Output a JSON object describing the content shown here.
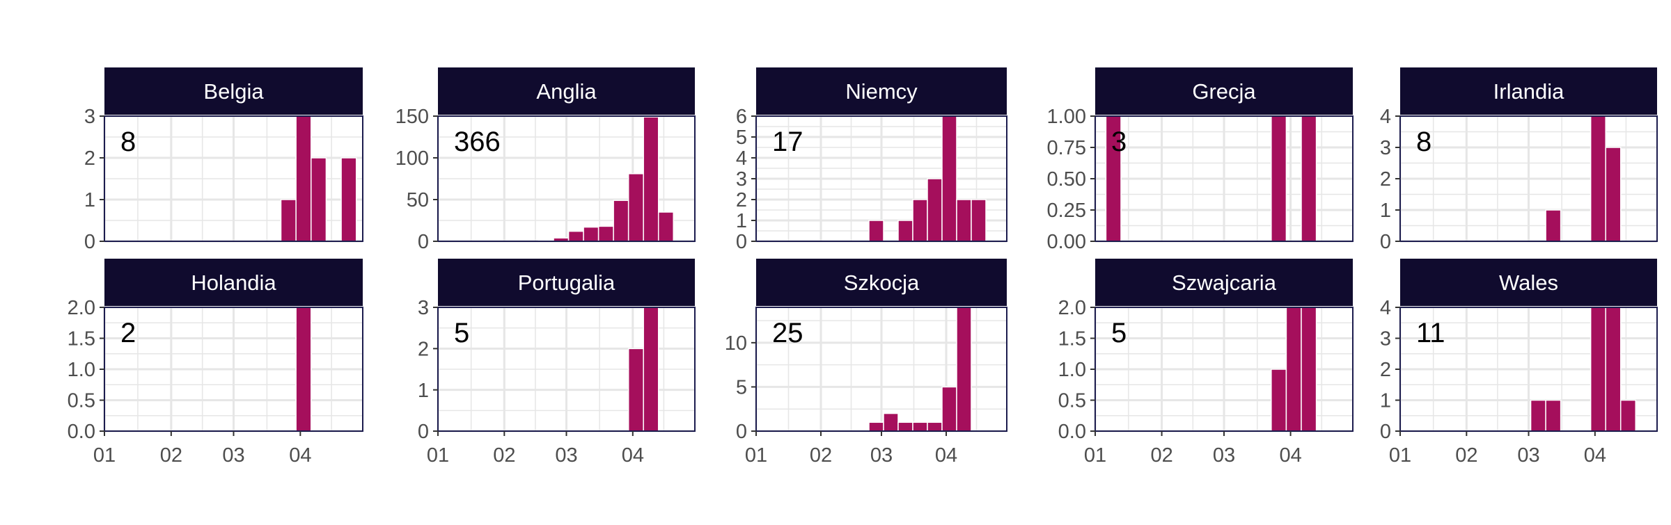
{
  "chart_data": {
    "type": "bar",
    "layout": "small-multiples 2x5, free y scales, shared x axis",
    "x_axis": {
      "type": "date-month",
      "range": [
        "2020-01-01",
        "2020-04-30"
      ],
      "ticks": [
        {
          "value": "2020-01-01",
          "label": "01"
        },
        {
          "value": "2020-02-01",
          "label": "02"
        },
        {
          "value": "2020-03-01",
          "label": "03"
        },
        {
          "value": "2020-04-01",
          "label": "04"
        }
      ]
    },
    "bar_color": "#a50f5c",
    "strip_color": "#100b2e",
    "strip_text_color": "#ffffff",
    "grid": true,
    "panels": [
      {
        "name": "Belgia",
        "total": "8",
        "ylim": [
          0,
          3
        ],
        "yticks": [
          {
            "v": 0,
            "label": "0"
          },
          {
            "v": 1,
            "label": "1"
          },
          {
            "v": 2,
            "label": "2"
          },
          {
            "v": 3,
            "label": "3"
          }
        ],
        "bars": [
          {
            "week_start": "2020-03-23",
            "value": 1
          },
          {
            "week_start": "2020-03-30",
            "value": 3
          },
          {
            "week_start": "2020-04-06",
            "value": 2
          },
          {
            "week_start": "2020-04-20",
            "value": 2
          }
        ]
      },
      {
        "name": "Anglia",
        "total": "366",
        "ylim": [
          0,
          150
        ],
        "yticks": [
          {
            "v": 0,
            "label": "0"
          },
          {
            "v": 50,
            "label": "50"
          },
          {
            "v": 100,
            "label": "100"
          },
          {
            "v": 150,
            "label": "150"
          }
        ],
        "bars": [
          {
            "week_start": "2020-02-17",
            "value": 1
          },
          {
            "week_start": "2020-02-24",
            "value": 4
          },
          {
            "week_start": "2020-03-02",
            "value": 12
          },
          {
            "week_start": "2020-03-09",
            "value": 17
          },
          {
            "week_start": "2020-03-16",
            "value": 18
          },
          {
            "week_start": "2020-03-23",
            "value": 49
          },
          {
            "week_start": "2020-03-30",
            "value": 81
          },
          {
            "week_start": "2020-04-06",
            "value": 149
          },
          {
            "week_start": "2020-04-13",
            "value": 35
          }
        ]
      },
      {
        "name": "Niemcy",
        "total": "17",
        "ylim": [
          0,
          6
        ],
        "yticks": [
          {
            "v": 0,
            "label": "0"
          },
          {
            "v": 1,
            "label": "1"
          },
          {
            "v": 2,
            "label": "2"
          },
          {
            "v": 3,
            "label": "3"
          },
          {
            "v": 4,
            "label": "4"
          },
          {
            "v": 5,
            "label": "5"
          },
          {
            "v": 6,
            "label": "6"
          }
        ],
        "bars": [
          {
            "week_start": "2020-02-24",
            "value": 1
          },
          {
            "week_start": "2020-03-09",
            "value": 1
          },
          {
            "week_start": "2020-03-16",
            "value": 2
          },
          {
            "week_start": "2020-03-23",
            "value": 3
          },
          {
            "week_start": "2020-03-30",
            "value": 6
          },
          {
            "week_start": "2020-04-06",
            "value": 2
          },
          {
            "week_start": "2020-04-13",
            "value": 2
          }
        ]
      },
      {
        "name": "Grecja",
        "total": "3",
        "ylim": [
          0,
          1
        ],
        "yticks": [
          {
            "v": 0,
            "label": "0.00"
          },
          {
            "v": 0.25,
            "label": "0.25"
          },
          {
            "v": 0.5,
            "label": "0.50"
          },
          {
            "v": 0.75,
            "label": "0.75"
          },
          {
            "v": 1,
            "label": "1.00"
          }
        ],
        "bars": [
          {
            "week_start": "2020-01-06",
            "value": 1
          },
          {
            "week_start": "2020-03-23",
            "value": 1
          },
          {
            "week_start": "2020-04-06",
            "value": 1
          }
        ]
      },
      {
        "name": "Irlandia",
        "total": "8",
        "ylim": [
          0,
          4
        ],
        "yticks": [
          {
            "v": 0,
            "label": "0"
          },
          {
            "v": 1,
            "label": "1"
          },
          {
            "v": 2,
            "label": "2"
          },
          {
            "v": 3,
            "label": "3"
          },
          {
            "v": 4,
            "label": "4"
          }
        ],
        "bars": [
          {
            "week_start": "2020-03-09",
            "value": 1
          },
          {
            "week_start": "2020-03-30",
            "value": 4
          },
          {
            "week_start": "2020-04-06",
            "value": 3
          }
        ]
      },
      {
        "name": "Holandia",
        "total": "2",
        "ylim": [
          0,
          2
        ],
        "yticks": [
          {
            "v": 0,
            "label": "0.0"
          },
          {
            "v": 0.5,
            "label": "0.5"
          },
          {
            "v": 1,
            "label": "1.0"
          },
          {
            "v": 1.5,
            "label": "1.5"
          },
          {
            "v": 2,
            "label": "2.0"
          }
        ],
        "bars": [
          {
            "week_start": "2020-03-30",
            "value": 2
          }
        ]
      },
      {
        "name": "Portugalia",
        "total": "5",
        "ylim": [
          0,
          3
        ],
        "yticks": [
          {
            "v": 0,
            "label": "0"
          },
          {
            "v": 1,
            "label": "1"
          },
          {
            "v": 2,
            "label": "2"
          },
          {
            "v": 3,
            "label": "3"
          }
        ],
        "bars": [
          {
            "week_start": "2020-03-30",
            "value": 2
          },
          {
            "week_start": "2020-04-06",
            "value": 3
          }
        ]
      },
      {
        "name": "Szkocja",
        "total": "25",
        "ylim": [
          0,
          14
        ],
        "yticks": [
          {
            "v": 0,
            "label": "0"
          },
          {
            "v": 5,
            "label": "5"
          },
          {
            "v": 10,
            "label": "10"
          }
        ],
        "bars": [
          {
            "week_start": "2020-02-24",
            "value": 1
          },
          {
            "week_start": "2020-03-02",
            "value": 2
          },
          {
            "week_start": "2020-03-09",
            "value": 1
          },
          {
            "week_start": "2020-03-16",
            "value": 1
          },
          {
            "week_start": "2020-03-23",
            "value": 1
          },
          {
            "week_start": "2020-03-30",
            "value": 5
          },
          {
            "week_start": "2020-04-06",
            "value": 14
          }
        ]
      },
      {
        "name": "Szwajcaria",
        "total": "5",
        "ylim": [
          0,
          2
        ],
        "yticks": [
          {
            "v": 0,
            "label": "0.0"
          },
          {
            "v": 0.5,
            "label": "0.5"
          },
          {
            "v": 1,
            "label": "1.0"
          },
          {
            "v": 1.5,
            "label": "1.5"
          },
          {
            "v": 2,
            "label": "2.0"
          }
        ],
        "bars": [
          {
            "week_start": "2020-03-23",
            "value": 1
          },
          {
            "week_start": "2020-03-30",
            "value": 2
          },
          {
            "week_start": "2020-04-06",
            "value": 2
          }
        ]
      },
      {
        "name": "Wales",
        "total": "11",
        "ylim": [
          0,
          4
        ],
        "yticks": [
          {
            "v": 0,
            "label": "0"
          },
          {
            "v": 1,
            "label": "1"
          },
          {
            "v": 2,
            "label": "2"
          },
          {
            "v": 3,
            "label": "3"
          },
          {
            "v": 4,
            "label": "4"
          }
        ],
        "bars": [
          {
            "week_start": "2020-03-02",
            "value": 1
          },
          {
            "week_start": "2020-03-09",
            "value": 1
          },
          {
            "week_start": "2020-03-30",
            "value": 4
          },
          {
            "week_start": "2020-04-06",
            "value": 4
          },
          {
            "week_start": "2020-04-13",
            "value": 1
          }
        ]
      }
    ]
  }
}
